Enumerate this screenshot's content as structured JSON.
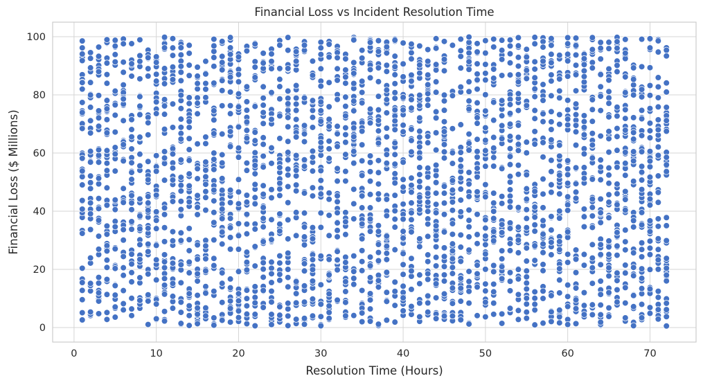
{
  "chart_data": {
    "type": "scatter",
    "title": "Financial Loss vs Incident Resolution Time",
    "xlabel": "Resolution Time (Hours)",
    "ylabel": "Financial Loss ($ Millions)",
    "xlim": [
      -2.6,
      75.6
    ],
    "ylim": [
      -5,
      105
    ],
    "xticks": [
      0,
      10,
      20,
      30,
      40,
      50,
      60,
      70
    ],
    "yticks": [
      0,
      20,
      40,
      60,
      80,
      100
    ],
    "grid": true,
    "marker_color": "#4472c4",
    "x_min": 1,
    "x_max": 72,
    "y_min": 0.5,
    "y_max": 99.9,
    "points_per_x": 42,
    "seed": 20240607
  }
}
